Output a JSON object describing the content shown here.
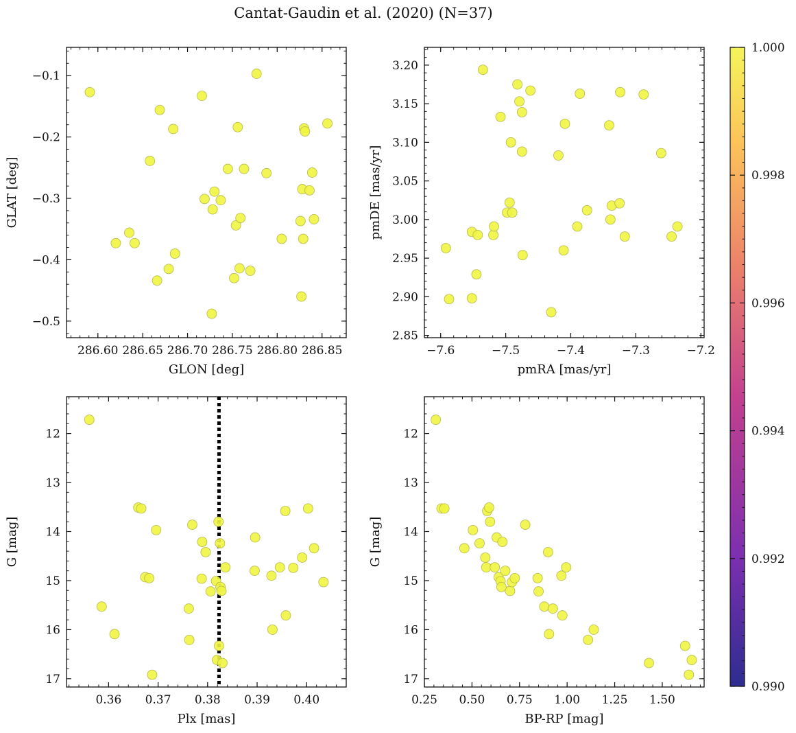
{
  "figure": {
    "title": "Cantat-Gaudin et al. (2020) (N=37)"
  },
  "colorbar": {
    "range": [
      0.99,
      1.0
    ],
    "ticks": [
      "0.990",
      "0.992",
      "0.994",
      "0.996",
      "0.998",
      "1.000"
    ],
    "cmap": "plasma",
    "colors": [
      "#2d2d8f",
      "#7b2fb0",
      "#c2408f",
      "#eb7f6b",
      "#fcc35a",
      "#f4f55a"
    ]
  },
  "marker_color": "#eff542",
  "marker_edge": "#b6b84a",
  "chart_data": [
    {
      "type": "scatter",
      "xlabel": "GLON [deg]",
      "ylabel": "GLAT [deg]",
      "xlim": [
        286.565,
        286.877
      ],
      "ylim": [
        -0.527,
        -0.054
      ],
      "xticks": [
        "286.60",
        "286.65",
        "286.70",
        "286.75",
        "286.80",
        "286.85"
      ],
      "xtick_values": [
        286.6,
        286.65,
        286.7,
        286.75,
        286.8,
        286.85
      ],
      "yticks": [
        "−0.1",
        "−0.2",
        "−0.3",
        "−0.4",
        "−0.5"
      ],
      "ytick_values": [
        -0.1,
        -0.2,
        -0.3,
        -0.4,
        -0.5
      ],
      "x": [
        286.591,
        286.62,
        286.635,
        286.641,
        286.658,
        286.666,
        286.669,
        286.679,
        286.684,
        286.686,
        286.716,
        286.719,
        286.727,
        286.728,
        286.73,
        286.735,
        286.745,
        286.752,
        286.754,
        286.756,
        286.758,
        286.759,
        286.763,
        286.77,
        286.777,
        286.788,
        286.805,
        286.826,
        286.827,
        286.828,
        286.829,
        286.83,
        286.831,
        286.836,
        286.839,
        286.841,
        286.856
      ],
      "y": [
        -0.127,
        -0.373,
        -0.356,
        -0.373,
        -0.239,
        -0.434,
        -0.156,
        -0.415,
        -0.187,
        -0.39,
        -0.133,
        -0.301,
        -0.488,
        -0.318,
        -0.289,
        -0.252,
        -0.43,
        -0.344,
        -0.184,
        -0.414,
        -0.332,
        -0.252,
        -0.418,
        -0.097,
        -0.259,
        -0.366,
        -0.337,
        -0.46,
        -0.285,
        -0.366,
        -0.186,
        -0.191,
        -0.287,
        -0.258,
        -0.334,
        -0.178,
        -0.303
      ],
      "x_fix": [
        286.591,
        286.62,
        286.635,
        286.641,
        286.658,
        286.666,
        286.669,
        286.679,
        286.684,
        286.686,
        286.716,
        286.719,
        286.727,
        286.728,
        286.73,
        286.745,
        286.752,
        286.754,
        286.756,
        286.758,
        286.759,
        286.763,
        286.77,
        286.777,
        286.788,
        286.805,
        286.826,
        286.827,
        286.828,
        286.829,
        286.83,
        286.831,
        286.836,
        286.839,
        286.841,
        286.856,
        286.737
      ]
    },
    {
      "type": "scatter",
      "xlabel": "pmRA [mas/yr]",
      "ylabel": "pmDE [mas/yr]",
      "xlim": [
        -7.625,
        -7.195
      ],
      "ylim": [
        2.847,
        3.223
      ],
      "xticks": [
        "−7.6",
        "−7.5",
        "−7.4",
        "−7.3",
        "−7.2"
      ],
      "xtick_values": [
        -7.6,
        -7.5,
        -7.4,
        -7.3,
        -7.2
      ],
      "yticks": [
        "3.20",
        "3.15",
        "3.10",
        "3.05",
        "3.00",
        "2.95",
        "2.90",
        "2.85"
      ],
      "ytick_values": [
        3.2,
        3.15,
        3.1,
        3.05,
        3.0,
        2.95,
        2.9,
        2.85
      ],
      "x": [
        -7.592,
        -7.587,
        -7.552,
        -7.552,
        -7.545,
        -7.543,
        -7.535,
        -7.519,
        -7.518,
        -7.508,
        -7.498,
        -7.494,
        -7.492,
        -7.49,
        -7.482,
        -7.479,
        -7.475,
        -7.475,
        -7.474,
        -7.462,
        -7.43,
        -7.419,
        -7.411,
        -7.409,
        -7.39,
        -7.386,
        -7.375,
        -7.341,
        -7.339,
        -7.337,
        -7.325,
        -7.324,
        -7.317,
        -7.288,
        -7.261,
        -7.245,
        -7.236
      ],
      "y": [
        2.963,
        2.897,
        2.898,
        2.984,
        2.929,
        2.98,
        3.194,
        2.98,
        2.991,
        3.133,
        3.009,
        3.022,
        3.1,
        3.009,
        3.175,
        3.153,
        3.139,
        3.088,
        2.954,
        3.167,
        2.88,
        3.083,
        2.96,
        3.124,
        2.991,
        3.163,
        3.012,
        3.122,
        3.0,
        3.018,
        3.021,
        3.165,
        2.978,
        3.162,
        3.086,
        2.978,
        2.991
      ]
    },
    {
      "type": "scatter",
      "xlabel": "Plx [mas]",
      "ylabel": "G [mag]",
      "xlim": [
        0.3515,
        0.408
      ],
      "ylim": [
        17.17,
        11.25
      ],
      "xticks": [
        "0.36",
        "0.37",
        "0.38",
        "0.39",
        "0.40"
      ],
      "xtick_values": [
        0.36,
        0.37,
        0.38,
        0.39,
        0.4
      ],
      "yticks": [
        "12",
        "13",
        "14",
        "15",
        "16",
        "17"
      ],
      "ytick_values": [
        12,
        13,
        14,
        15,
        16,
        17
      ],
      "vline": 0.3823,
      "x": [
        0.3561,
        0.3586,
        0.3612,
        0.366,
        0.3666,
        0.3674,
        0.3682,
        0.3688,
        0.3696,
        0.3762,
        0.3763,
        0.3769,
        0.3788,
        0.3789,
        0.3796,
        0.3806,
        0.3817,
        0.3819,
        0.3822,
        0.3823,
        0.3825,
        0.3826,
        0.3828,
        0.383,
        0.3836,
        0.3895,
        0.3896,
        0.3929,
        0.3931,
        0.3946,
        0.3957,
        0.3958,
        0.3973,
        0.3991,
        0.4003,
        0.4015,
        0.4034
      ],
      "y": [
        11.72,
        15.53,
        16.09,
        13.51,
        13.53,
        14.93,
        14.95,
        16.92,
        13.97,
        15.57,
        16.21,
        13.86,
        14.96,
        14.21,
        14.42,
        15.22,
        15.01,
        16.62,
        13.8,
        16.33,
        14.24,
        15.13,
        15.21,
        16.68,
        14.73,
        14.8,
        14.12,
        14.9,
        16.0,
        14.73,
        13.58,
        15.71,
        14.74,
        14.53,
        13.53,
        14.34,
        15.03
      ]
    },
    {
      "type": "scatter",
      "xlabel": "BP-RP [mag]",
      "ylabel": "G [mag]",
      "xlim": [
        0.25,
        1.72
      ],
      "ylim": [
        17.17,
        11.25
      ],
      "xticks": [
        "0.25",
        "0.50",
        "0.75",
        "1.00",
        "1.25",
        "1.50"
      ],
      "xtick_values": [
        0.25,
        0.5,
        0.75,
        1.0,
        1.25,
        1.5
      ],
      "yticks": [
        "12",
        "13",
        "14",
        "15",
        "16",
        "17"
      ],
      "ytick_values": [
        12,
        13,
        14,
        15,
        16,
        17
      ],
      "x": [
        0.31,
        0.34,
        0.355,
        0.46,
        0.505,
        0.54,
        0.57,
        0.575,
        0.58,
        0.59,
        0.595,
        0.62,
        0.63,
        0.64,
        0.65,
        0.655,
        0.66,
        0.675,
        0.7,
        0.71,
        0.725,
        0.78,
        0.845,
        0.85,
        0.88,
        0.9,
        0.905,
        0.925,
        0.97,
        0.975,
        0.995,
        1.11,
        1.14,
        1.43,
        1.62,
        1.64,
        1.655
      ],
      "y": [
        11.72,
        13.53,
        13.53,
        14.34,
        13.97,
        14.24,
        14.53,
        14.73,
        13.58,
        13.51,
        13.8,
        14.73,
        14.12,
        14.93,
        15.01,
        15.13,
        14.21,
        14.8,
        15.21,
        15.03,
        14.95,
        13.86,
        14.95,
        15.22,
        15.53,
        14.42,
        16.09,
        15.57,
        14.9,
        15.71,
        14.73,
        16.21,
        16.0,
        16.68,
        16.33,
        16.92,
        16.62
      ]
    }
  ]
}
